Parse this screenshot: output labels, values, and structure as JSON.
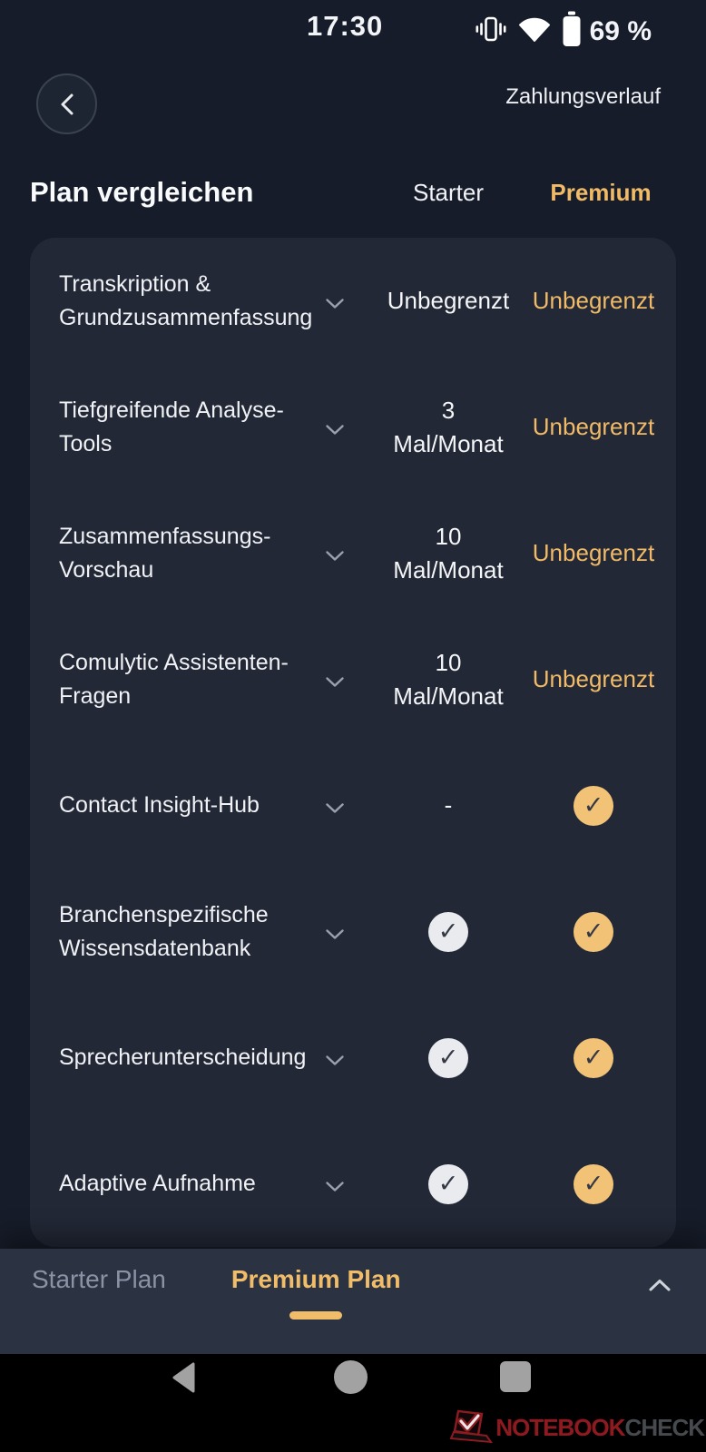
{
  "colors": {
    "page_bg": "#161c29",
    "card_bg": "#222836",
    "sheet_bg": "#2b3242",
    "gold_text": "#f0ba66",
    "check_gold_bg": "#f2c377",
    "check_gray_bg": "#e9ebef"
  },
  "status_bar": {
    "time": "17:30",
    "battery_percent": "69 %",
    "icons": [
      "vibrate-icon",
      "wifi-icon",
      "battery-icon"
    ]
  },
  "header": {
    "back_icon": "chevron-left-icon",
    "payment_history_label": "Zahlungsverlauf"
  },
  "compare": {
    "title": "Plan vergleichen",
    "columns": {
      "starter": "Starter",
      "premium": "Premium"
    }
  },
  "features": [
    {
      "name": "Transkription & Grundzusammenfassung",
      "starter": {
        "type": "text",
        "lines": [
          "Unbegrenzt"
        ]
      },
      "premium": {
        "type": "text",
        "gold": true,
        "lines": [
          "Unbegrenzt"
        ]
      }
    },
    {
      "name": "Tiefgreifende Analyse-Tools",
      "starter": {
        "type": "text",
        "lines": [
          "3",
          "Mal/Monat"
        ]
      },
      "premium": {
        "type": "text",
        "gold": true,
        "lines": [
          "Unbegrenzt"
        ]
      }
    },
    {
      "name": "Zusammenfassungs-Vorschau",
      "starter": {
        "type": "text",
        "lines": [
          "10",
          "Mal/Monat"
        ]
      },
      "premium": {
        "type": "text",
        "gold": true,
        "lines": [
          "Unbegrenzt"
        ]
      }
    },
    {
      "name": "Comulytic Assistenten-Fragen",
      "starter": {
        "type": "text",
        "lines": [
          "10",
          "Mal/Monat"
        ]
      },
      "premium": {
        "type": "text",
        "gold": true,
        "lines": [
          "Unbegrenzt"
        ]
      }
    },
    {
      "name": "Contact Insight-Hub",
      "starter": {
        "type": "text",
        "lines": [
          "-"
        ]
      },
      "premium": {
        "type": "check",
        "gold": true
      }
    },
    {
      "name": "Branchenspezifische Wissensdatenbank",
      "starter": {
        "type": "check",
        "gold": false
      },
      "premium": {
        "type": "check",
        "gold": true
      }
    },
    {
      "name": "Sprecherunterscheidung",
      "starter": {
        "type": "check",
        "gold": false
      },
      "premium": {
        "type": "check",
        "gold": true
      }
    },
    {
      "name": "Adaptive Aufnahme",
      "starter": {
        "type": "check",
        "gold": false
      },
      "premium": {
        "type": "check",
        "gold": true
      }
    }
  ],
  "bottom_sheet": {
    "tabs": [
      {
        "label": "Starter Plan",
        "active": false
      },
      {
        "label": "Premium Plan",
        "active": true
      }
    ],
    "collapse_icon": "chevron-up-icon"
  },
  "nav_bar": {
    "icons": [
      "back-triangle-icon",
      "home-circle-icon",
      "recents-square-icon"
    ]
  },
  "watermark": {
    "brand_red": "NOTEBOOK",
    "brand_gray": "CHECK"
  },
  "glyphs": {
    "check": "✓"
  }
}
